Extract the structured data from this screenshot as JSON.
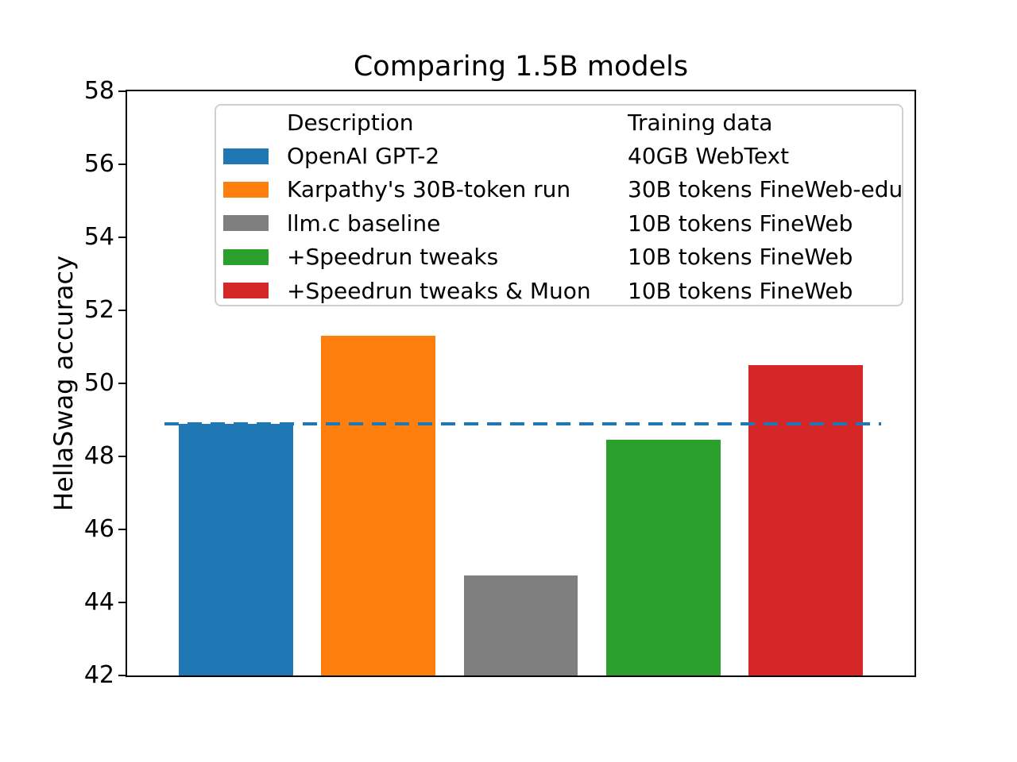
{
  "chart_data": {
    "type": "bar",
    "title": "Comparing 1.5B models",
    "ylabel": "HellaSwag accuracy",
    "ylim": [
      42,
      58
    ],
    "yticks": [
      42,
      44,
      46,
      48,
      50,
      52,
      54,
      56,
      58
    ],
    "grid": false,
    "x_tick_labels": [],
    "legend_position": "upper center",
    "legend_columns": [
      "Description",
      "Training data"
    ],
    "bars": [
      {
        "description": "OpenAI GPT-2",
        "training_data": "40GB WebText",
        "value": 48.9,
        "color": "#1f77b4"
      },
      {
        "description": "Karpathy's 30B-token run",
        "training_data": "30B tokens FineWeb-edu",
        "value": 51.3,
        "color": "#ff7f0e"
      },
      {
        "description": "llm.c baseline",
        "training_data": "10B tokens FineWeb",
        "value": 44.75,
        "color": "#7f7f7f"
      },
      {
        "description": "+Speedrun tweaks",
        "training_data": "10B tokens FineWeb",
        "value": 48.45,
        "color": "#2ca02c"
      },
      {
        "description": "+Speedrun tweaks & Muon",
        "training_data": "10B tokens FineWeb",
        "value": 50.5,
        "color": "#d62728"
      }
    ],
    "reference_line": {
      "value": 48.9,
      "color": "#1f77b4",
      "style": "dashed",
      "x_extent_data": [
        -0.5,
        4.5
      ]
    }
  }
}
